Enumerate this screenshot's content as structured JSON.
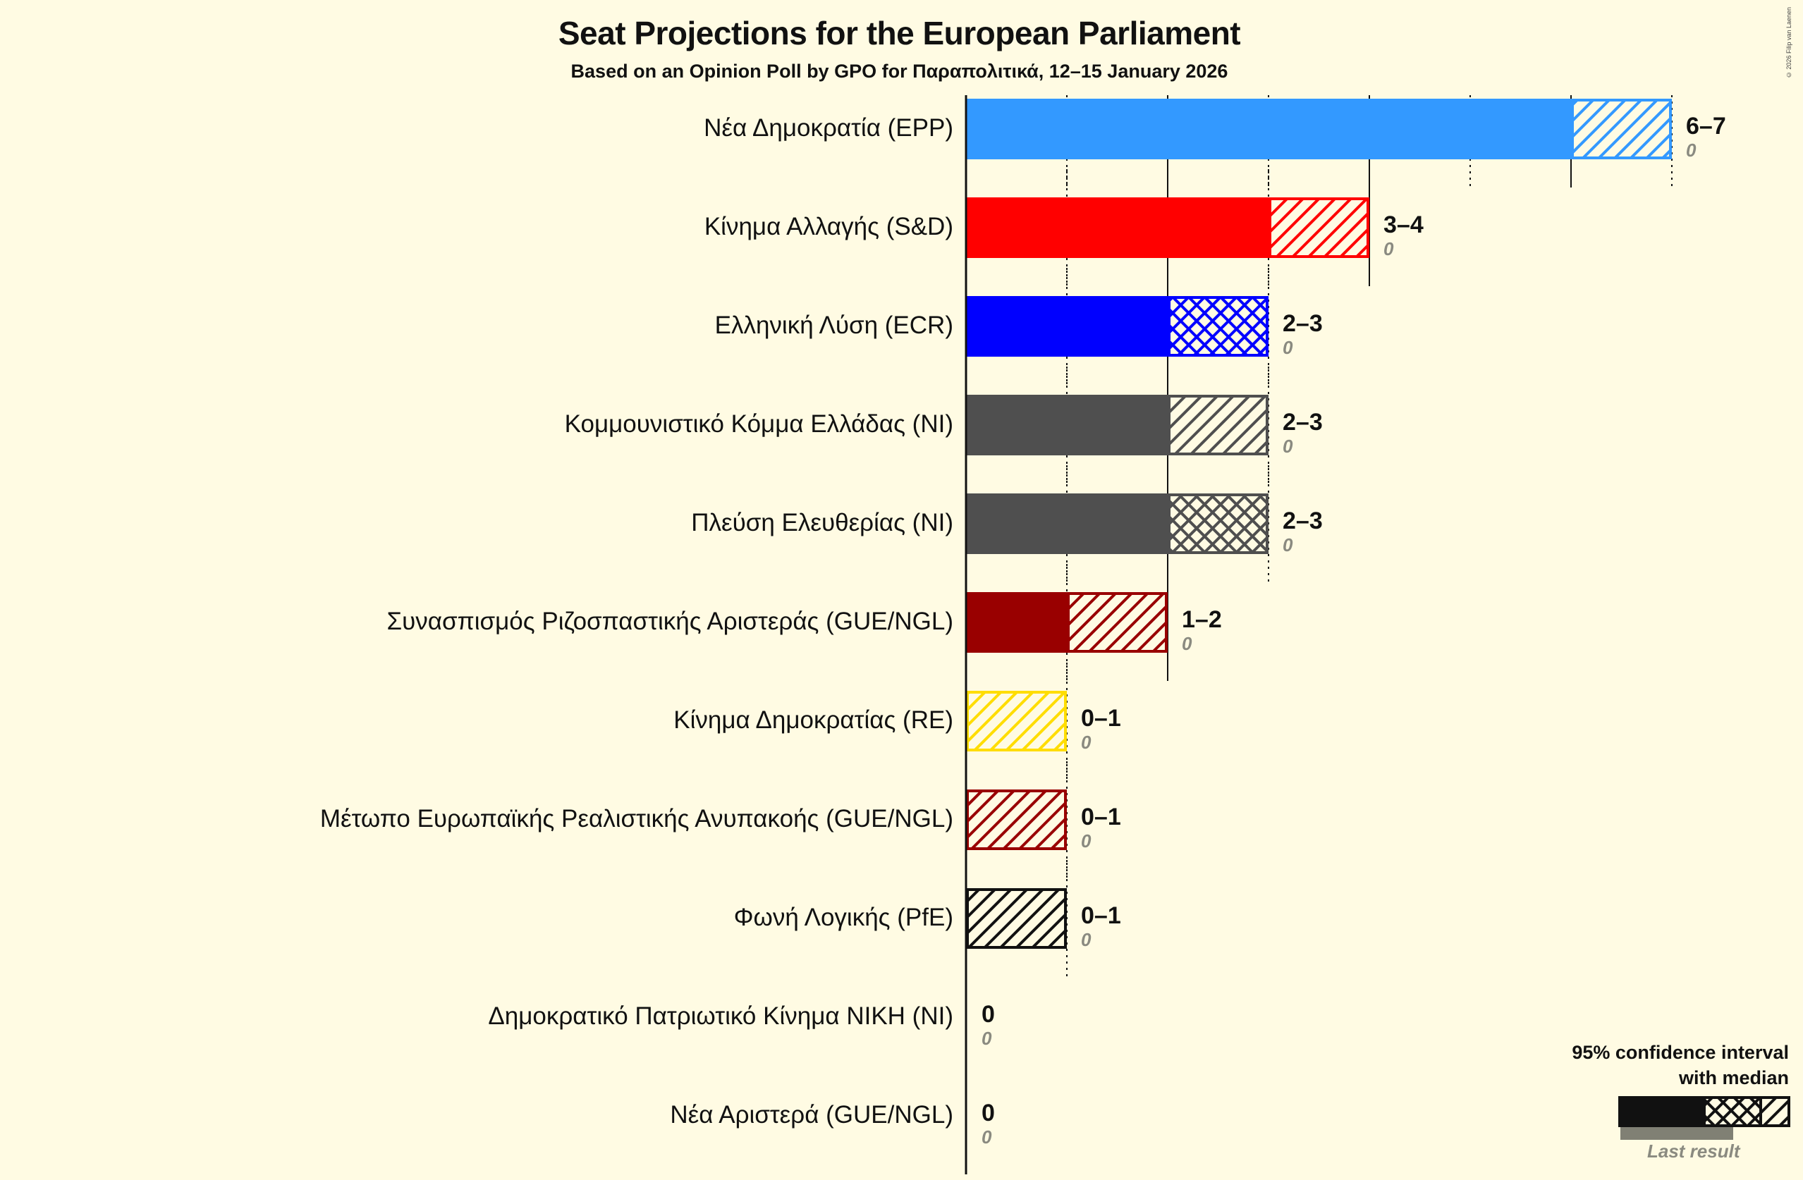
{
  "header": {
    "title": "Seat Projections for the European Parliament",
    "subtitle": "Based on an Opinion Poll by GPO for Παραπολιτικά, 12–15 January 2026",
    "copyright": "© 2026 Filip van Laenen"
  },
  "legend": {
    "title_line1": "95% confidence interval",
    "title_line2": "with median",
    "last_result": "Last result"
  },
  "chart_data": {
    "type": "bar",
    "orientation": "horizontal",
    "title": "Seat Projections for the European Parliament",
    "subtitle": "Based on an Opinion Poll by GPO for Παραπολιτικά, 12–15 January 2026",
    "xlabel": "",
    "ylabel": "",
    "xlim": [
      0,
      7
    ],
    "grid": "vertical lines every seat (solid every 2, dotted odd)",
    "legend_position": "bottom-right",
    "series_description": "Solid bar = lower CI bound, hatched = upper range, crosshatch when median above lower bound",
    "categories": [
      "Νέα Δημοκρατία (EPP)",
      "Κίνημα Αλλαγής (S&D)",
      "Ελληνική Λύση (ECR)",
      "Κομμουνιστικό Κόμμα Ελλάδας (NI)",
      "Πλεύση Ελευθερίας (NI)",
      "Συνασπισμός Ριζοσπαστικής Αριστεράς (GUE/NGL)",
      "Κίνημα Δημοκρατίας (RE)",
      "Μέτωπο Ευρωπαϊκής Ρεαλιστικής Ανυπακοής (GUE/NGL)",
      "Φωνή Λογικής (PfE)",
      "Δημοκρατικό Πατριωτικό Κίνημα ΝΙΚΗ (NI)",
      "Νέα Αριστερά (GUE/NGL)"
    ],
    "parties": [
      {
        "name": "Νέα Δημοκρατία (EPP)",
        "low": 6,
        "high": 7,
        "range_label": "6–7",
        "last_result": "0",
        "color": "#3399ff",
        "pattern": "hatch"
      },
      {
        "name": "Κίνημα Αλλαγής (S&D)",
        "low": 3,
        "high": 4,
        "range_label": "3–4",
        "last_result": "0",
        "color": "#ff0000",
        "pattern": "hatch"
      },
      {
        "name": "Ελληνική Λύση (ECR)",
        "low": 2,
        "high": 3,
        "range_label": "2–3",
        "last_result": "0",
        "color": "#0000ff",
        "pattern": "cross"
      },
      {
        "name": "Κομμουνιστικό Κόμμα Ελλάδας (NI)",
        "low": 2,
        "high": 3,
        "range_label": "2–3",
        "last_result": "0",
        "color": "#4f4f4f",
        "pattern": "hatch"
      },
      {
        "name": "Πλεύση Ελευθερίας (NI)",
        "low": 2,
        "high": 3,
        "range_label": "2–3",
        "last_result": "0",
        "color": "#4f4f4f",
        "pattern": "cross"
      },
      {
        "name": "Συνασπισμός Ριζοσπαστικής Αριστεράς (GUE/NGL)",
        "low": 1,
        "high": 2,
        "range_label": "1–2",
        "last_result": "0",
        "color": "#990000",
        "pattern": "hatch"
      },
      {
        "name": "Κίνημα Δημοκρατίας (RE)",
        "low": 0,
        "high": 1,
        "range_label": "0–1",
        "last_result": "0",
        "color": "#ffdd00",
        "pattern": "hatch"
      },
      {
        "name": "Μέτωπο Ευρωπαϊκής Ρεαλιστικής Ανυπακοής (GUE/NGL)",
        "low": 0,
        "high": 1,
        "range_label": "0–1",
        "last_result": "0",
        "color": "#990000",
        "pattern": "hatch"
      },
      {
        "name": "Φωνή Λογικής (PfE)",
        "low": 0,
        "high": 1,
        "range_label": "0–1",
        "last_result": "0",
        "color": "#111111",
        "pattern": "hatch"
      },
      {
        "name": "Δημοκρατικό Πατριωτικό Κίνημα ΝΙΚΗ (NI)",
        "low": 0,
        "high": 0,
        "range_label": "0",
        "last_result": "0",
        "color": "#4f4f4f",
        "pattern": "none"
      },
      {
        "name": "Νέα Αριστερά (GUE/NGL)",
        "low": 0,
        "high": 0,
        "range_label": "0",
        "last_result": "0",
        "color": "#990000",
        "pattern": "none"
      }
    ]
  }
}
